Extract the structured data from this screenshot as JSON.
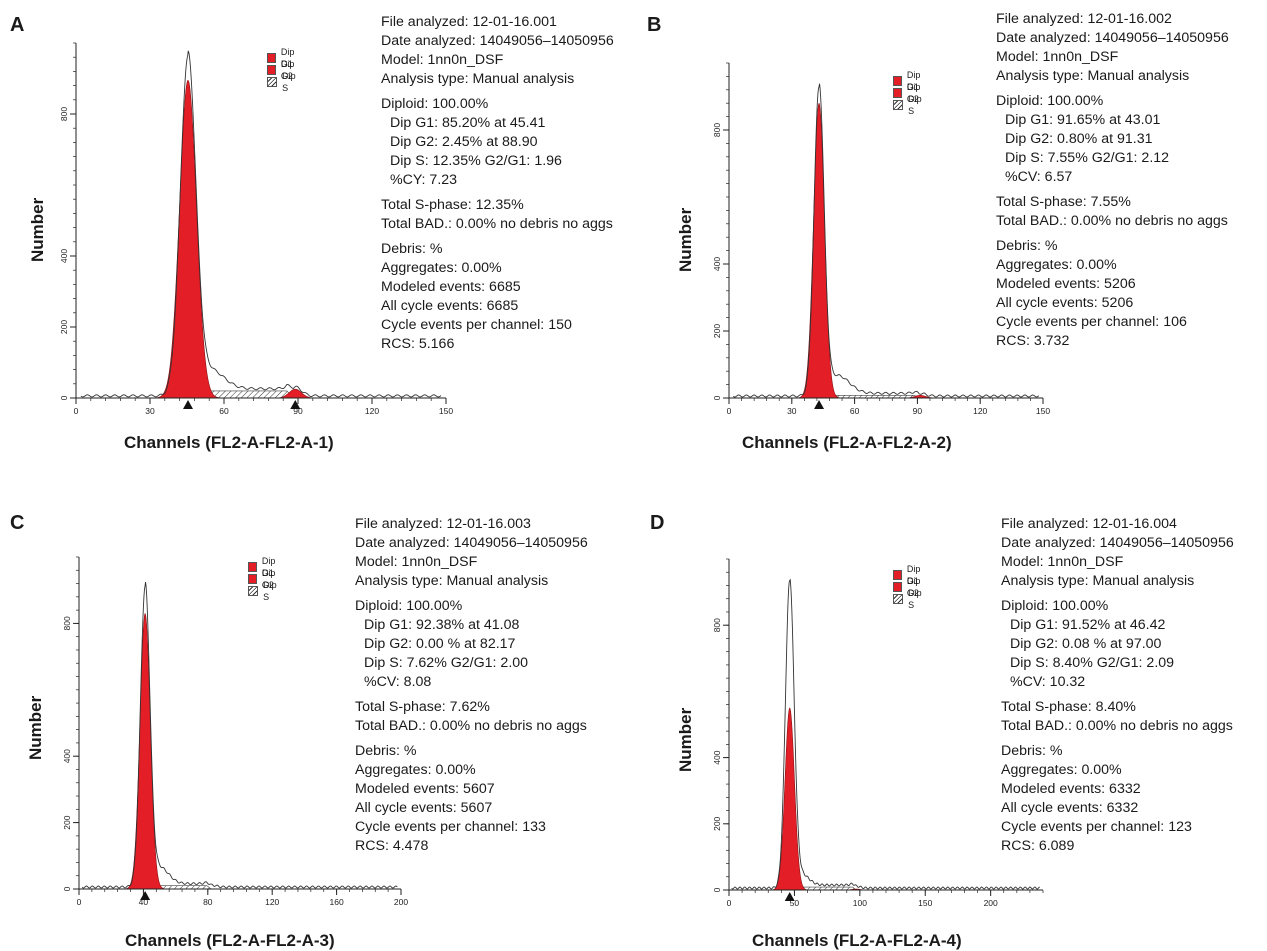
{
  "legend": {
    "g1": "Dip G1",
    "g2": "Dip G2",
    "s": "Dip S"
  },
  "colors": {
    "g1": "#e41e26",
    "g2": "#e41e26",
    "s_hatch": "#333333",
    "envelope": "#333333"
  },
  "chart_data": [
    {
      "panel": "A",
      "type": "area",
      "xlabel": "Channels (FL2-A-FL2-A-1)",
      "ylabel": "Number",
      "xticks": [
        0,
        30,
        60,
        90,
        120,
        150
      ],
      "yticks": [
        0,
        200,
        400,
        800
      ],
      "xlim": [
        0,
        150
      ],
      "ylim": [
        0,
        1000
      ],
      "g1": {
        "mean": 45.41,
        "sd": 3.4,
        "height": 895
      },
      "g2": {
        "mean": 88.9,
        "sd": 2.5,
        "height": 25
      },
      "s": {
        "start": 48,
        "end": 88,
        "level": 20
      },
      "envelope_peak": 955,
      "markers": [
        45.41,
        88.9
      ],
      "stats": [
        [
          "File analyzed: 12-01-16.001",
          "Date analyzed: 14049056–14050956",
          "Model: 1nn0n_DSF",
          "Analysis type: Manual analysis"
        ],
        [
          "Diploid: 100.00%",
          "Dip G1: 85.20% at 45.41",
          "Dip G2: 2.45% at 88.90",
          "Dip S: 12.35% G2/G1: 1.96",
          "%CY: 7.23"
        ],
        [
          "Total S-phase: 12.35%",
          "Total BAD.: 0.00% no debris no aggs"
        ],
        [
          "Debris: %",
          "Aggregates: 0.00%",
          "Modeled events: 6685",
          "All cycle events: 6685",
          "Cycle events per channel: 150",
          "RCS: 5.166"
        ]
      ]
    },
    {
      "panel": "B",
      "type": "area",
      "xlabel": "Channels (FL2-A-FL2-A-2)",
      "ylabel": "Number",
      "xticks": [
        0,
        30,
        60,
        90,
        120,
        150
      ],
      "yticks": [
        0,
        200,
        400,
        800
      ],
      "xlim": [
        0,
        150
      ],
      "ylim": [
        0,
        1000
      ],
      "g1": {
        "mean": 43.01,
        "sd": 2.6,
        "height": 880
      },
      "g2": {
        "mean": 91.31,
        "sd": 2.5,
        "height": 8
      },
      "s": {
        "start": 46,
        "end": 91,
        "level": 8
      },
      "envelope_peak": 925,
      "markers": [
        43.01
      ],
      "stats": [
        [
          "File analyzed: 12-01-16.002",
          "Date analyzed: 14049056–14050956",
          "Model: 1nn0n_DSF",
          "Analysis type: Manual analysis"
        ],
        [
          "Diploid: 100.00%",
          "Dip G1: 91.65% at 43.01",
          "Dip G2: 0.80% at 91.31",
          "Dip S: 7.55% G2/G1: 2.12",
          "%CV: 6.57"
        ],
        [
          "Total S-phase: 7.55%",
          "Total BAD.: 0.00% no debris no aggs"
        ],
        [
          "Debris: %",
          "Aggregates: 0.00%",
          "Modeled events: 5206",
          "All cycle events: 5206",
          "Cycle events per channel: 106",
          "RCS: 3.732"
        ]
      ]
    },
    {
      "panel": "C",
      "type": "area",
      "xlabel": "Channels (FL2-A-FL2-A-3)",
      "ylabel": "Number",
      "xticks": [
        0,
        40,
        80,
        120,
        160,
        200
      ],
      "yticks": [
        0,
        200,
        400,
        800
      ],
      "xlim": [
        0,
        200
      ],
      "ylim": [
        0,
        1000
      ],
      "g1": {
        "mean": 41.08,
        "sd": 3.2,
        "height": 830
      },
      "g2": {
        "mean": 82.17,
        "sd": 3.0,
        "height": 0
      },
      "s": {
        "start": 44,
        "end": 82,
        "level": 10
      },
      "envelope_peak": 905,
      "markers": [
        41.08
      ],
      "stats": [
        [
          "File analyzed: 12-01-16.003",
          "Date analyzed: 14049056–14050956",
          "Model: 1nn0n_DSF",
          "Analysis type: Manual analysis"
        ],
        [
          "Diploid: 100.00%",
          "Dip G1: 92.38% at 41.08",
          "Dip G2: 0.00 % at 82.17",
          "Dip S: 7.62% G2/G1: 2.00",
          "%CV: 8.08"
        ],
        [
          "Total S-phase: 7.62%",
          "Total BAD.: 0.00% no debris no aggs"
        ],
        [
          "Debris: %",
          "Aggregates: 0.00%",
          "Modeled events: 5607",
          "All cycle events: 5607",
          "Cycle events per channel: 133",
          "RCS: 4.478"
        ]
      ]
    },
    {
      "panel": "D",
      "type": "area",
      "xlabel": "Channels (FL2-A-FL2-A-4)",
      "ylabel": "Number",
      "xticks": [
        0,
        50,
        100,
        150,
        200
      ],
      "yticks": [
        0,
        200,
        400,
        800
      ],
      "xlim": [
        0,
        240
      ],
      "ylim": [
        0,
        1000
      ],
      "g1": {
        "mean": 46.42,
        "sd": 3.6,
        "height": 550
      },
      "g2": {
        "mean": 97.0,
        "sd": 3.0,
        "height": 3
      },
      "s": {
        "start": 50,
        "end": 97,
        "level": 9
      },
      "envelope_peak": 930,
      "markers": [
        46.42
      ],
      "stats": [
        [
          "File analyzed: 12-01-16.004",
          "Date analyzed: 14049056–14050956",
          "Model: 1nn0n_DSF",
          "Analysis type: Manual analysis"
        ],
        [
          "Diploid: 100.00%",
          "Dip G1: 91.52% at 46.42",
          "Dip G2: 0.08 % at 97.00",
          "Dip S: 8.40% G2/G1: 2.09",
          "%CV: 10.32"
        ],
        [
          "Total S-phase: 8.40%",
          "Total BAD.: 0.00% no debris no aggs"
        ],
        [
          "Debris: %",
          "Aggregates: 0.00%",
          "Modeled events: 6332",
          "All cycle events: 6332",
          "Cycle events per channel: 123",
          "RCS: 6.089"
        ]
      ]
    }
  ]
}
